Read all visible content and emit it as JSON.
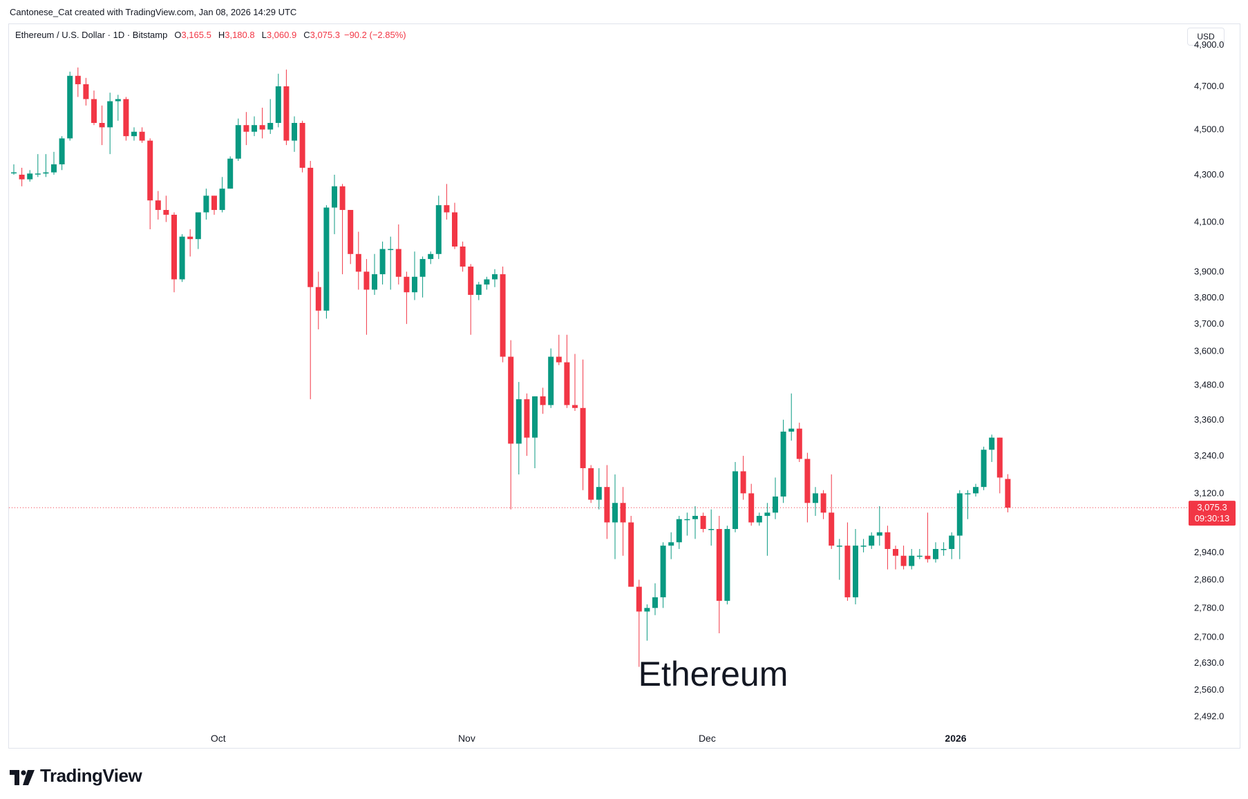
{
  "header": {
    "credit": "Cantonese_Cat created with TradingView.com, Jan 08, 2026 14:29 UTC",
    "symbol": "Ethereum / U.S. Dollar · 1D · Bitstamp",
    "open_key": "O",
    "open": "3,165.5",
    "high_key": "H",
    "high": "3,180.8",
    "low_key": "L",
    "low": "3,060.9",
    "close_key": "C",
    "close": "3,075.3",
    "change": "−90.2 (−2.85%)",
    "currency_button": "USD"
  },
  "watermark": "Ethereum",
  "footer": {
    "brand": "TradingView"
  },
  "price_tag": {
    "price": "3,075.3",
    "countdown": "09:30:13"
  },
  "colors": {
    "up": "#089981",
    "down": "#f23645",
    "axis_text": "#131722",
    "border": "#e0e3eb"
  },
  "chart_data": {
    "type": "candlestick",
    "y_scale": "log",
    "ylim": [
      2440,
      5000
    ],
    "y_ticks": [
      {
        "value": 4900,
        "label": "4,900.0"
      },
      {
        "value": 4700,
        "label": "4,700.0"
      },
      {
        "value": 4500,
        "label": "4,500.0"
      },
      {
        "value": 4300,
        "label": "4,300.0"
      },
      {
        "value": 4100,
        "label": "4,100.0"
      },
      {
        "value": 3900,
        "label": "3,900.0"
      },
      {
        "value": 3800,
        "label": "3,800.0"
      },
      {
        "value": 3700,
        "label": "3,700.0"
      },
      {
        "value": 3600,
        "label": "3,600.0"
      },
      {
        "value": 3480,
        "label": "3,480.0"
      },
      {
        "value": 3360,
        "label": "3,360.0"
      },
      {
        "value": 3240,
        "label": "3,240.0"
      },
      {
        "value": 3120,
        "label": "3,120.0"
      },
      {
        "value": 2940,
        "label": "2,940.0"
      },
      {
        "value": 2860,
        "label": "2,860.0"
      },
      {
        "value": 2780,
        "label": "2,780.0"
      },
      {
        "value": 2700,
        "label": "2,700.0"
      },
      {
        "value": 2630,
        "label": "2,630.0"
      },
      {
        "value": 2560,
        "label": "2,560.0"
      },
      {
        "value": 2492,
        "label": "2,492.0"
      }
    ],
    "x_labels": [
      {
        "label": "Oct",
        "index": 25.5,
        "bold": false
      },
      {
        "label": "Nov",
        "index": 56.5,
        "bold": false
      },
      {
        "label": "Dec",
        "index": 86.5,
        "bold": false
      },
      {
        "label": "2026",
        "index": 117.5,
        "bold": true
      }
    ],
    "last_price": 3075.3,
    "candles": [
      {
        "o": 4310,
        "h": 4345,
        "l": 4300,
        "c": 4310
      },
      {
        "o": 4300,
        "h": 4330,
        "l": 4250,
        "c": 4280
      },
      {
        "o": 4280,
        "h": 4320,
        "l": 4270,
        "c": 4305
      },
      {
        "o": 4305,
        "h": 4390,
        "l": 4290,
        "c": 4305
      },
      {
        "o": 4305,
        "h": 4390,
        "l": 4290,
        "c": 4310
      },
      {
        "o": 4310,
        "h": 4400,
        "l": 4300,
        "c": 4345
      },
      {
        "o": 4345,
        "h": 4470,
        "l": 4320,
        "c": 4460
      },
      {
        "o": 4460,
        "h": 4770,
        "l": 4450,
        "c": 4750
      },
      {
        "o": 4750,
        "h": 4790,
        "l": 4650,
        "c": 4710
      },
      {
        "o": 4710,
        "h": 4740,
        "l": 4610,
        "c": 4640
      },
      {
        "o": 4640,
        "h": 4680,
        "l": 4520,
        "c": 4530
      },
      {
        "o": 4530,
        "h": 4610,
        "l": 4430,
        "c": 4510
      },
      {
        "o": 4510,
        "h": 4670,
        "l": 4390,
        "c": 4630
      },
      {
        "o": 4630,
        "h": 4660,
        "l": 4540,
        "c": 4640
      },
      {
        "o": 4640,
        "h": 4650,
        "l": 4450,
        "c": 4470
      },
      {
        "o": 4470,
        "h": 4510,
        "l": 4450,
        "c": 4490
      },
      {
        "o": 4490,
        "h": 4510,
        "l": 4440,
        "c": 4450
      },
      {
        "o": 4450,
        "h": 4460,
        "l": 4070,
        "c": 4190
      },
      {
        "o": 4190,
        "h": 4230,
        "l": 4110,
        "c": 4150
      },
      {
        "o": 4150,
        "h": 4210,
        "l": 4100,
        "c": 4130
      },
      {
        "o": 4130,
        "h": 4140,
        "l": 3820,
        "c": 3870
      },
      {
        "o": 3870,
        "h": 4050,
        "l": 3860,
        "c": 4040
      },
      {
        "o": 4040,
        "h": 4070,
        "l": 3960,
        "c": 4030
      },
      {
        "o": 4030,
        "h": 4140,
        "l": 3990,
        "c": 4140
      },
      {
        "o": 4140,
        "h": 4240,
        "l": 4110,
        "c": 4210
      },
      {
        "o": 4210,
        "h": 4210,
        "l": 4130,
        "c": 4150
      },
      {
        "o": 4150,
        "h": 4290,
        "l": 4140,
        "c": 4240
      },
      {
        "o": 4240,
        "h": 4380,
        "l": 4240,
        "c": 4370
      },
      {
        "o": 4370,
        "h": 4550,
        "l": 4360,
        "c": 4520
      },
      {
        "o": 4520,
        "h": 4580,
        "l": 4430,
        "c": 4490
      },
      {
        "o": 4490,
        "h": 4560,
        "l": 4470,
        "c": 4520
      },
      {
        "o": 4520,
        "h": 4600,
        "l": 4460,
        "c": 4500
      },
      {
        "o": 4500,
        "h": 4640,
        "l": 4480,
        "c": 4530
      },
      {
        "o": 4530,
        "h": 4760,
        "l": 4510,
        "c": 4700
      },
      {
        "o": 4700,
        "h": 4780,
        "l": 4430,
        "c": 4450
      },
      {
        "o": 4450,
        "h": 4560,
        "l": 4400,
        "c": 4530
      },
      {
        "o": 4530,
        "h": 4540,
        "l": 4310,
        "c": 4330
      },
      {
        "o": 4330,
        "h": 4360,
        "l": 3430,
        "c": 3840
      },
      {
        "o": 3840,
        "h": 3900,
        "l": 3680,
        "c": 3750
      },
      {
        "o": 3750,
        "h": 4170,
        "l": 3720,
        "c": 4160
      },
      {
        "o": 4160,
        "h": 4300,
        "l": 4050,
        "c": 4250
      },
      {
        "o": 4250,
        "h": 4260,
        "l": 3890,
        "c": 4150
      },
      {
        "o": 4150,
        "h": 4150,
        "l": 3930,
        "c": 3970
      },
      {
        "o": 3970,
        "h": 4060,
        "l": 3830,
        "c": 3900
      },
      {
        "o": 3900,
        "h": 3950,
        "l": 3660,
        "c": 3830
      },
      {
        "o": 3830,
        "h": 3970,
        "l": 3810,
        "c": 3890
      },
      {
        "o": 3890,
        "h": 4020,
        "l": 3850,
        "c": 3990
      },
      {
        "o": 3990,
        "h": 4040,
        "l": 3830,
        "c": 3990
      },
      {
        "o": 3990,
        "h": 4090,
        "l": 3850,
        "c": 3880
      },
      {
        "o": 3880,
        "h": 3900,
        "l": 3700,
        "c": 3820
      },
      {
        "o": 3820,
        "h": 3980,
        "l": 3790,
        "c": 3880
      },
      {
        "o": 3880,
        "h": 3960,
        "l": 3800,
        "c": 3950
      },
      {
        "o": 3950,
        "h": 3980,
        "l": 3930,
        "c": 3970
      },
      {
        "o": 3970,
        "h": 4210,
        "l": 3950,
        "c": 4170
      },
      {
        "o": 4170,
        "h": 4260,
        "l": 4110,
        "c": 4140
      },
      {
        "o": 4140,
        "h": 4180,
        "l": 3990,
        "c": 4000
      },
      {
        "o": 4000,
        "h": 4020,
        "l": 3900,
        "c": 3920
      },
      {
        "o": 3920,
        "h": 3930,
        "l": 3660,
        "c": 3810
      },
      {
        "o": 3810,
        "h": 3860,
        "l": 3790,
        "c": 3850
      },
      {
        "o": 3850,
        "h": 3880,
        "l": 3830,
        "c": 3870
      },
      {
        "o": 3870,
        "h": 3910,
        "l": 3840,
        "c": 3890
      },
      {
        "o": 3890,
        "h": 3920,
        "l": 3560,
        "c": 3580
      },
      {
        "o": 3580,
        "h": 3640,
        "l": 3070,
        "c": 3280
      },
      {
        "o": 3280,
        "h": 3490,
        "l": 3180,
        "c": 3430
      },
      {
        "o": 3430,
        "h": 3450,
        "l": 3240,
        "c": 3300
      },
      {
        "o": 3300,
        "h": 3440,
        "l": 3200,
        "c": 3440
      },
      {
        "o": 3440,
        "h": 3470,
        "l": 3380,
        "c": 3410
      },
      {
        "o": 3410,
        "h": 3610,
        "l": 3400,
        "c": 3580
      },
      {
        "o": 3580,
        "h": 3660,
        "l": 3550,
        "c": 3560
      },
      {
        "o": 3560,
        "h": 3660,
        "l": 3400,
        "c": 3410
      },
      {
        "o": 3410,
        "h": 3590,
        "l": 3390,
        "c": 3400
      },
      {
        "o": 3400,
        "h": 3570,
        "l": 3130,
        "c": 3200
      },
      {
        "o": 3200,
        "h": 3210,
        "l": 3090,
        "c": 3100
      },
      {
        "o": 3100,
        "h": 3200,
        "l": 3070,
        "c": 3140
      },
      {
        "o": 3140,
        "h": 3210,
        "l": 2980,
        "c": 3030
      },
      {
        "o": 3030,
        "h": 3180,
        "l": 2920,
        "c": 3090
      },
      {
        "o": 3090,
        "h": 3140,
        "l": 2930,
        "c": 3030
      },
      {
        "o": 3030,
        "h": 3050,
        "l": 2840,
        "c": 2840
      },
      {
        "o": 2840,
        "h": 2860,
        "l": 2620,
        "c": 2770
      },
      {
        "o": 2770,
        "h": 2790,
        "l": 2690,
        "c": 2780
      },
      {
        "o": 2780,
        "h": 2850,
        "l": 2760,
        "c": 2810
      },
      {
        "o": 2810,
        "h": 2970,
        "l": 2780,
        "c": 2960
      },
      {
        "o": 2960,
        "h": 3000,
        "l": 2920,
        "c": 2970
      },
      {
        "o": 2970,
        "h": 3050,
        "l": 2950,
        "c": 3040
      },
      {
        "o": 3040,
        "h": 3060,
        "l": 2990,
        "c": 3040
      },
      {
        "o": 3040,
        "h": 3080,
        "l": 2980,
        "c": 3050
      },
      {
        "o": 3050,
        "h": 3060,
        "l": 3000,
        "c": 3010
      },
      {
        "o": 3010,
        "h": 3070,
        "l": 2960,
        "c": 3010
      },
      {
        "o": 3010,
        "h": 3050,
        "l": 2710,
        "c": 2800
      },
      {
        "o": 2800,
        "h": 3020,
        "l": 2790,
        "c": 3010
      },
      {
        "o": 3010,
        "h": 3220,
        "l": 3000,
        "c": 3190
      },
      {
        "o": 3190,
        "h": 3240,
        "l": 3100,
        "c": 3120
      },
      {
        "o": 3120,
        "h": 3150,
        "l": 3020,
        "c": 3030
      },
      {
        "o": 3030,
        "h": 3060,
        "l": 3020,
        "c": 3050
      },
      {
        "o": 3050,
        "h": 3090,
        "l": 2930,
        "c": 3060
      },
      {
        "o": 3060,
        "h": 3170,
        "l": 3040,
        "c": 3110
      },
      {
        "o": 3110,
        "h": 3360,
        "l": 3090,
        "c": 3320
      },
      {
        "o": 3320,
        "h": 3450,
        "l": 3290,
        "c": 3330
      },
      {
        "o": 3330,
        "h": 3350,
        "l": 3220,
        "c": 3230
      },
      {
        "o": 3230,
        "h": 3250,
        "l": 3030,
        "c": 3090
      },
      {
        "o": 3090,
        "h": 3140,
        "l": 3050,
        "c": 3120
      },
      {
        "o": 3120,
        "h": 3130,
        "l": 3040,
        "c": 3060
      },
      {
        "o": 3060,
        "h": 3180,
        "l": 2950,
        "c": 2960
      },
      {
        "o": 2960,
        "h": 2980,
        "l": 2860,
        "c": 2960
      },
      {
        "o": 2960,
        "h": 3030,
        "l": 2800,
        "c": 2810
      },
      {
        "o": 2810,
        "h": 3010,
        "l": 2790,
        "c": 2960
      },
      {
        "o": 2960,
        "h": 2980,
        "l": 2940,
        "c": 2960
      },
      {
        "o": 2960,
        "h": 3000,
        "l": 2950,
        "c": 2990
      },
      {
        "o": 2990,
        "h": 3080,
        "l": 2960,
        "c": 3000
      },
      {
        "o": 3000,
        "h": 3020,
        "l": 2890,
        "c": 2950
      },
      {
        "o": 2950,
        "h": 2960,
        "l": 2890,
        "c": 2930
      },
      {
        "o": 2930,
        "h": 2960,
        "l": 2890,
        "c": 2900
      },
      {
        "o": 2900,
        "h": 2950,
        "l": 2890,
        "c": 2930
      },
      {
        "o": 2930,
        "h": 2950,
        "l": 2920,
        "c": 2930
      },
      {
        "o": 2930,
        "h": 3060,
        "l": 2910,
        "c": 2920
      },
      {
        "o": 2920,
        "h": 2970,
        "l": 2910,
        "c": 2950
      },
      {
        "o": 2950,
        "h": 2970,
        "l": 2930,
        "c": 2950
      },
      {
        "o": 2950,
        "h": 3000,
        "l": 2920,
        "c": 2990
      },
      {
        "o": 2990,
        "h": 3130,
        "l": 2920,
        "c": 3120
      },
      {
        "o": 3120,
        "h": 3130,
        "l": 3040,
        "c": 3120
      },
      {
        "o": 3120,
        "h": 3150,
        "l": 3110,
        "c": 3140
      },
      {
        "o": 3140,
        "h": 3270,
        "l": 3130,
        "c": 3260
      },
      {
        "o": 3260,
        "h": 3310,
        "l": 3220,
        "c": 3300
      },
      {
        "o": 3300,
        "h": 3300,
        "l": 3120,
        "c": 3170
      },
      {
        "o": 3165.5,
        "h": 3180.8,
        "l": 3060.9,
        "c": 3075.3
      }
    ]
  }
}
